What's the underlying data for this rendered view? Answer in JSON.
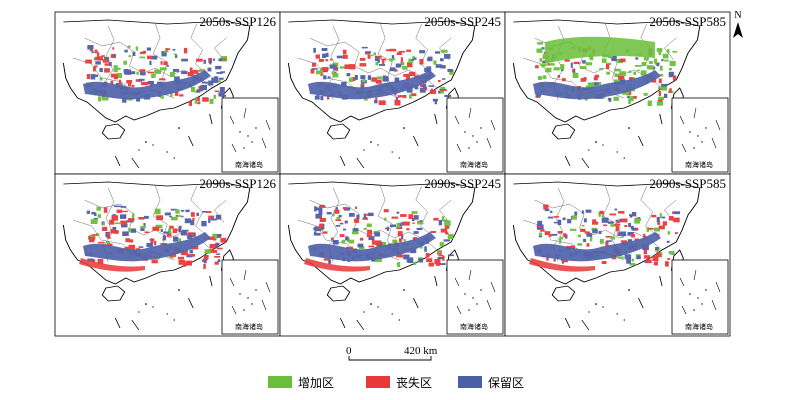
{
  "panels": [
    {
      "id": "p1",
      "title": "2050s-SSP126",
      "inset_label": "南海诸岛",
      "scenario": "ssp126",
      "period": "2050s"
    },
    {
      "id": "p2",
      "title": "2050s-SSP245",
      "inset_label": "南海诸岛",
      "scenario": "ssp245",
      "period": "2050s"
    },
    {
      "id": "p3",
      "title": "2050s-SSP585",
      "inset_label": "南海诸岛",
      "scenario": "ssp585",
      "period": "2050s"
    },
    {
      "id": "p4",
      "title": "2090s-SSP126",
      "inset_label": "南海诸岛",
      "scenario": "ssp126",
      "period": "2090s"
    },
    {
      "id": "p5",
      "title": "2090s-SSP245",
      "inset_label": "南海诸岛",
      "scenario": "ssp245",
      "period": "2090s"
    },
    {
      "id": "p6",
      "title": "2090s-SSP585",
      "inset_label": "南海诸岛",
      "scenario": "ssp585",
      "period": "2090s"
    }
  ],
  "north_arrow": {
    "label": "N"
  },
  "scale_bar": {
    "start_label": "0",
    "end_label": "420 km"
  },
  "legend": {
    "items": [
      {
        "label": "增加区",
        "color": "#6abf3a"
      },
      {
        "label": "丧失区",
        "color": "#e8393a"
      },
      {
        "label": "保留区",
        "color": "#4b5fa8"
      }
    ]
  },
  "colors": {
    "gain": "#6abf3a",
    "loss": "#e8393a",
    "retain": "#4b5fa8",
    "outline": "#000000"
  }
}
